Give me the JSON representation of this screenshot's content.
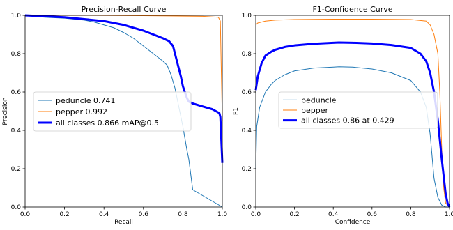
{
  "chart_data": [
    {
      "type": "line",
      "title": "Precision-Recall Curve",
      "xlabel": "Recall",
      "ylabel": "Precision",
      "xlim": [
        0,
        1
      ],
      "ylim": [
        0,
        1
      ],
      "xticks": [
        "0.0",
        "0.2",
        "0.4",
        "0.6",
        "0.8",
        "1.0"
      ],
      "yticks": [
        "0.0",
        "0.2",
        "0.4",
        "0.6",
        "0.8",
        "1.0"
      ],
      "grid": false,
      "legend_position": "center-left",
      "series": [
        {
          "name": "peduncle 0.741",
          "color": "#1f77b4",
          "width": 1,
          "x": [
            0.0,
            0.05,
            0.1,
            0.2,
            0.3,
            0.35,
            0.4,
            0.45,
            0.5,
            0.55,
            0.6,
            0.65,
            0.7,
            0.72,
            0.74,
            0.76,
            0.78,
            0.8,
            0.82,
            0.83,
            0.85,
            1.0
          ],
          "y": [
            1.0,
            0.995,
            0.99,
            0.985,
            0.975,
            0.965,
            0.95,
            0.935,
            0.91,
            0.88,
            0.84,
            0.8,
            0.76,
            0.74,
            0.69,
            0.62,
            0.52,
            0.42,
            0.3,
            0.25,
            0.09,
            0.0
          ]
        },
        {
          "name": "pepper 0.992",
          "color": "#ff7f0e",
          "width": 1,
          "x": [
            0.0,
            0.3,
            0.6,
            0.9,
            0.98,
            0.99,
            0.995,
            1.0
          ],
          "y": [
            1.0,
            1.0,
            0.998,
            0.995,
            0.99,
            0.97,
            0.7,
            0.45
          ]
        },
        {
          "name": "all classes 0.866 mAP@0.5",
          "color": "#0000ff",
          "width": 3,
          "x": [
            0.0,
            0.1,
            0.2,
            0.3,
            0.4,
            0.45,
            0.5,
            0.55,
            0.6,
            0.65,
            0.7,
            0.73,
            0.75,
            0.76,
            0.77,
            0.78,
            0.79,
            0.8,
            0.81,
            0.82,
            0.83,
            0.85,
            0.9,
            0.95,
            0.985,
            0.99,
            1.0
          ],
          "y": [
            1.0,
            0.995,
            0.99,
            0.98,
            0.97,
            0.96,
            0.95,
            0.935,
            0.92,
            0.9,
            0.88,
            0.865,
            0.84,
            0.8,
            0.76,
            0.72,
            0.68,
            0.63,
            0.6,
            0.57,
            0.55,
            0.54,
            0.525,
            0.51,
            0.49,
            0.47,
            0.23
          ]
        }
      ]
    },
    {
      "type": "line",
      "title": "F1-Confidence Curve",
      "xlabel": "Confidence",
      "ylabel": "F1",
      "xlim": [
        0,
        1
      ],
      "ylim": [
        0,
        1
      ],
      "xticks": [
        "0.0",
        "0.2",
        "0.4",
        "0.6",
        "0.8",
        "1.0"
      ],
      "yticks": [
        "0.0",
        "0.2",
        "0.4",
        "0.6",
        "0.8",
        "1.0"
      ],
      "grid": false,
      "legend_position": "center-left",
      "series": [
        {
          "name": "peduncle",
          "color": "#1f77b4",
          "width": 1,
          "x": [
            0.0,
            0.005,
            0.02,
            0.05,
            0.08,
            0.1,
            0.15,
            0.2,
            0.3,
            0.4,
            0.43,
            0.5,
            0.6,
            0.7,
            0.8,
            0.85,
            0.88,
            0.9,
            0.92,
            0.94,
            0.96,
            0.98,
            1.0
          ],
          "y": [
            0.2,
            0.42,
            0.52,
            0.6,
            0.64,
            0.66,
            0.69,
            0.71,
            0.725,
            0.73,
            0.732,
            0.73,
            0.72,
            0.7,
            0.66,
            0.6,
            0.52,
            0.38,
            0.15,
            0.05,
            0.01,
            0.0,
            0.0
          ]
        },
        {
          "name": "pepper",
          "color": "#ff7f0e",
          "width": 1,
          "x": [
            0.0,
            0.01,
            0.05,
            0.1,
            0.2,
            0.4,
            0.6,
            0.8,
            0.88,
            0.9,
            0.92,
            0.94,
            0.95,
            0.96,
            0.97,
            0.98,
            1.0
          ],
          "y": [
            0.95,
            0.96,
            0.97,
            0.975,
            0.978,
            0.98,
            0.98,
            0.978,
            0.97,
            0.95,
            0.9,
            0.8,
            0.6,
            0.3,
            0.1,
            0.02,
            0.0
          ]
        },
        {
          "name": "all classes 0.86 at 0.429",
          "color": "#0000ff",
          "width": 3,
          "x": [
            0.0,
            0.01,
            0.03,
            0.05,
            0.08,
            0.1,
            0.15,
            0.2,
            0.3,
            0.4,
            0.429,
            0.5,
            0.6,
            0.7,
            0.8,
            0.85,
            0.88,
            0.9,
            0.92,
            0.94,
            0.96,
            0.98,
            0.99,
            1.0
          ],
          "y": [
            0.61,
            0.68,
            0.75,
            0.79,
            0.81,
            0.82,
            0.835,
            0.843,
            0.852,
            0.857,
            0.858,
            0.857,
            0.853,
            0.845,
            0.83,
            0.8,
            0.76,
            0.7,
            0.6,
            0.45,
            0.25,
            0.07,
            0.02,
            0.0
          ]
        }
      ]
    }
  ]
}
